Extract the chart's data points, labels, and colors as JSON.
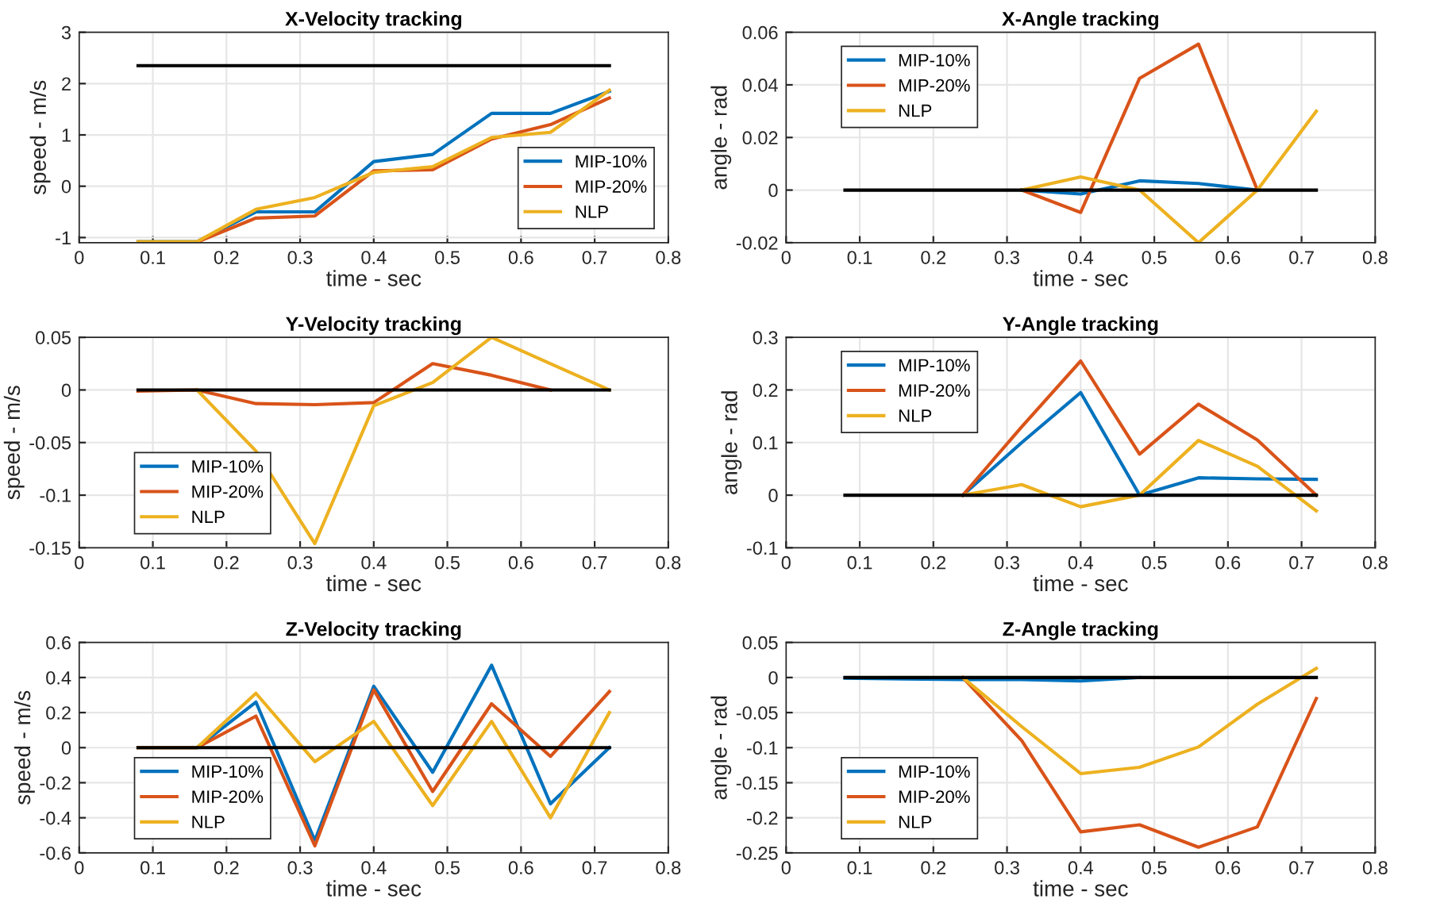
{
  "chart_data": [
    {
      "type": "line",
      "title": "X-Velocity tracking",
      "xlabel": "time - sec",
      "ylabel": "speed - m/s",
      "xlim": [
        0,
        0.8
      ],
      "xticks": [
        0,
        0.1,
        0.2,
        0.3,
        0.4,
        0.5,
        0.6,
        0.7,
        0.8
      ],
      "ylim": [
        -1.1,
        3
      ],
      "yticks": [
        -1,
        0,
        1,
        2,
        3
      ],
      "grid": true,
      "legend": "bottom right",
      "x": [
        0.08,
        0.16,
        0.24,
        0.32,
        0.4,
        0.48,
        0.56,
        0.64,
        0.72
      ],
      "series": [
        {
          "name": "MIP-10%",
          "color": "#0072bd",
          "values": [
            -1.08,
            -1.08,
            -0.5,
            -0.5,
            0.48,
            0.62,
            1.42,
            1.42,
            1.85
          ]
        },
        {
          "name": "MIP-20%",
          "color": "#d95319",
          "values": [
            -1.09,
            -1.09,
            -0.62,
            -0.58,
            0.3,
            0.32,
            0.92,
            1.2,
            1.72
          ]
        },
        {
          "name": "NLP",
          "color": "#edb120",
          "values": [
            -1.08,
            -1.08,
            -0.45,
            -0.22,
            0.27,
            0.38,
            0.95,
            1.05,
            1.87
          ]
        },
        {
          "color": "#000000",
          "values": [
            2.35,
            2.35,
            2.35,
            2.35,
            2.35,
            2.35,
            2.35,
            2.35,
            2.35
          ]
        }
      ]
    },
    {
      "type": "line",
      "title": "X-Angle tracking",
      "xlabel": "time - sec",
      "ylabel": "angle - rad",
      "xlim": [
        0,
        0.8
      ],
      "xticks": [
        0,
        0.1,
        0.2,
        0.3,
        0.4,
        0.5,
        0.6,
        0.7,
        0.8
      ],
      "ylim": [
        -0.02,
        0.06
      ],
      "yticks": [
        -0.02,
        0,
        0.02,
        0.04,
        0.06
      ],
      "grid": true,
      "legend": "top left",
      "x": [
        0.08,
        0.16,
        0.24,
        0.32,
        0.4,
        0.48,
        0.56,
        0.64,
        0.72
      ],
      "series": [
        {
          "name": "MIP-10%",
          "color": "#0072bd",
          "x": [
            0.32,
            0.4,
            0.48,
            0.56,
            0.64
          ],
          "values": [
            0,
            -0.0015,
            0.0035,
            0.0025,
            0
          ]
        },
        {
          "name": "MIP-20%",
          "color": "#d95319",
          "x": [
            0.32,
            0.4,
            0.48,
            0.56,
            0.64
          ],
          "values": [
            0,
            -0.0085,
            0.0425,
            0.0555,
            0
          ]
        },
        {
          "name": "NLP",
          "color": "#edb120",
          "x": [
            0.32,
            0.4,
            0.48,
            0.56,
            0.64,
            0.72
          ],
          "values": [
            0,
            0.005,
            0,
            -0.02,
            0,
            0.03
          ]
        },
        {
          "color": "#000000",
          "values": [
            0,
            0,
            0,
            0,
            0,
            0,
            0,
            0,
            0
          ]
        }
      ]
    },
    {
      "type": "line",
      "title": "Y-Velocity tracking",
      "xlabel": "time - sec",
      "ylabel": "speed - m/s",
      "xlim": [
        0,
        0.8
      ],
      "xticks": [
        0,
        0.1,
        0.2,
        0.3,
        0.4,
        0.5,
        0.6,
        0.7,
        0.8
      ],
      "ylim": [
        -0.15,
        0.05
      ],
      "yticks": [
        -0.15,
        -0.1,
        -0.05,
        0,
        0.05
      ],
      "grid": true,
      "legend": "bottom left",
      "x": [
        0.08,
        0.16,
        0.24,
        0.32,
        0.4,
        0.48,
        0.56,
        0.64,
        0.72
      ],
      "series": [
        {
          "name": "MIP-10%",
          "color": "#0072bd",
          "values": [
            null,
            null,
            null,
            null,
            null,
            null,
            null,
            null,
            null
          ]
        },
        {
          "name": "MIP-20%",
          "color": "#d95319",
          "x": [
            0.08,
            0.16,
            0.24,
            0.32,
            0.4,
            0.48,
            0.56,
            0.64
          ],
          "values": [
            -0.001,
            0,
            -0.013,
            -0.014,
            -0.012,
            0.025,
            0.014,
            0
          ]
        },
        {
          "name": "NLP",
          "color": "#edb120",
          "x": [
            0.16,
            0.24,
            0.32,
            0.4,
            0.48,
            0.56,
            0.64,
            0.72
          ],
          "values": [
            0,
            -0.058,
            -0.146,
            -0.015,
            0.007,
            0.05,
            0.025,
            0
          ]
        },
        {
          "color": "#000000",
          "values": [
            0,
            0,
            0,
            0,
            0,
            0,
            0,
            0,
            0
          ]
        }
      ]
    },
    {
      "type": "line",
      "title": "Y-Angle tracking",
      "xlabel": "time - sec",
      "ylabel": "angle - rad",
      "xlim": [
        0,
        0.8
      ],
      "xticks": [
        0,
        0.1,
        0.2,
        0.3,
        0.4,
        0.5,
        0.6,
        0.7,
        0.8
      ],
      "ylim": [
        -0.1,
        0.3
      ],
      "yticks": [
        -0.1,
        0,
        0.1,
        0.2,
        0.3
      ],
      "grid": true,
      "legend": "top left",
      "x": [
        0.24,
        0.32,
        0.4,
        0.48,
        0.56,
        0.64,
        0.72
      ],
      "series": [
        {
          "name": "MIP-10%",
          "color": "#0072bd",
          "values": [
            0,
            0.1,
            0.195,
            0,
            0.033,
            0.031,
            0.03
          ]
        },
        {
          "name": "MIP-20%",
          "color": "#d95319",
          "values": [
            0,
            0.13,
            0.255,
            0.078,
            0.173,
            0.105,
            0
          ]
        },
        {
          "name": "NLP",
          "color": "#edb120",
          "values": [
            0,
            0.02,
            -0.022,
            0,
            0.104,
            0.055,
            -0.03
          ]
        },
        {
          "color": "#000000",
          "x": [
            0.08,
            0.72
          ],
          "values": [
            0,
            0
          ]
        }
      ]
    },
    {
      "type": "line",
      "title": "Z-Velocity tracking",
      "xlabel": "time - sec",
      "ylabel": "speed - m/s",
      "xlim": [
        0,
        0.8
      ],
      "xticks": [
        0,
        0.1,
        0.2,
        0.3,
        0.4,
        0.5,
        0.6,
        0.7,
        0.8
      ],
      "ylim": [
        -0.6,
        0.6
      ],
      "yticks": [
        -0.6,
        -0.4,
        -0.2,
        0,
        0.2,
        0.4,
        0.6
      ],
      "grid": true,
      "legend": "bottom left",
      "x": [
        0.08,
        0.16,
        0.24,
        0.32,
        0.4,
        0.48,
        0.56,
        0.64,
        0.72
      ],
      "series": [
        {
          "name": "MIP-10%",
          "color": "#0072bd",
          "values": [
            0,
            0,
            0.26,
            -0.53,
            0.35,
            -0.14,
            0.47,
            -0.32,
            0
          ]
        },
        {
          "name": "MIP-20%",
          "color": "#d95319",
          "values": [
            0,
            0,
            0.18,
            -0.56,
            0.33,
            -0.25,
            0.25,
            -0.05,
            0.32
          ]
        },
        {
          "name": "NLP",
          "color": "#edb120",
          "values": [
            0,
            0,
            0.31,
            -0.08,
            0.15,
            -0.33,
            0.15,
            -0.4,
            0.2
          ]
        },
        {
          "color": "#000000",
          "values": [
            0,
            0,
            0,
            0,
            0,
            0,
            0,
            0,
            0
          ]
        }
      ]
    },
    {
      "type": "line",
      "title": "Z-Angle tracking",
      "xlabel": "time - sec",
      "ylabel": "angle - rad",
      "xlim": [
        0,
        0.8
      ],
      "xticks": [
        0,
        0.1,
        0.2,
        0.3,
        0.4,
        0.5,
        0.6,
        0.7,
        0.8
      ],
      "ylim": [
        -0.25,
        0.05
      ],
      "yticks": [
        -0.25,
        -0.2,
        -0.15,
        -0.1,
        -0.05,
        0,
        0.05
      ],
      "grid": true,
      "legend": "bottom left",
      "x": [
        0.08,
        0.16,
        0.24,
        0.32,
        0.4,
        0.48,
        0.56,
        0.64,
        0.72
      ],
      "series": [
        {
          "name": "MIP-10%",
          "color": "#0072bd",
          "values": [
            -0.001,
            -0.002,
            -0.003,
            -0.003,
            -0.005,
            0,
            null,
            null,
            null
          ]
        },
        {
          "name": "MIP-20%",
          "color": "#d95319",
          "x": [
            0.24,
            0.32,
            0.4,
            0.48,
            0.56,
            0.64,
            0.72
          ],
          "values": [
            0,
            -0.09,
            -0.22,
            -0.21,
            -0.242,
            -0.213,
            -0.03
          ]
        },
        {
          "name": "NLP",
          "color": "#edb120",
          "x": [
            0.24,
            0.32,
            0.4,
            0.48,
            0.56,
            0.64,
            0.72
          ],
          "values": [
            0,
            -0.07,
            -0.137,
            -0.128,
            -0.099,
            -0.038,
            0.013
          ]
        },
        {
          "color": "#000000",
          "values": [
            0,
            0,
            0,
            0,
            0,
            0,
            0,
            0,
            0
          ]
        }
      ]
    }
  ]
}
